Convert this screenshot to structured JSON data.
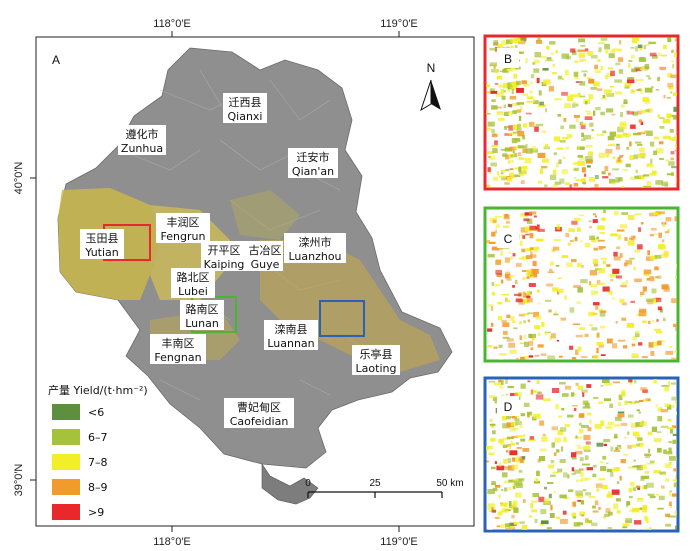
{
  "main_map": {
    "panel_label": "A",
    "top_ticks": [
      "118°0′E",
      "119°0′E"
    ],
    "bottom_ticks": [
      "118°0′E",
      "119°0′E"
    ],
    "left_ticks": [
      "40°0′N",
      "39°0′N"
    ],
    "north_label": "N",
    "places": [
      {
        "zh": "迁西县",
        "en": "Qianxi"
      },
      {
        "zh": "遵化市",
        "en": "Zunhua"
      },
      {
        "zh": "迁安市",
        "en": "Qian'an"
      },
      {
        "zh": "丰润区",
        "en": "Fengrun"
      },
      {
        "zh": "玉田县",
        "en": "Yutian"
      },
      {
        "zh": "开平区",
        "en": "Kaiping"
      },
      {
        "zh": "古冶区",
        "en": "Guye"
      },
      {
        "zh": "滦州市",
        "en": "Luanzhou"
      },
      {
        "zh": "路北区",
        "en": "Lubei"
      },
      {
        "zh": "路南区",
        "en": "Lunan"
      },
      {
        "zh": "滦南县",
        "en": "Luannan"
      },
      {
        "zh": "丰南区",
        "en": "Fengnan"
      },
      {
        "zh": "乐亭县",
        "en": "Laoting"
      },
      {
        "zh": "曹妃甸区",
        "en": "Caofeidian"
      }
    ],
    "legend": {
      "title": "产量 Yield/(t·hm⁻²)",
      "items": [
        {
          "label": "<6",
          "color": "#5d8f3e"
        },
        {
          "label": "6–7",
          "color": "#a6c23a"
        },
        {
          "label": "7–8",
          "color": "#f3ee2a"
        },
        {
          "label": "8–9",
          "color": "#f39a2c"
        },
        {
          "label": ">9",
          "color": "#e8282a"
        }
      ]
    },
    "scale_bar": {
      "ticks": [
        "0",
        "25",
        "50 km"
      ]
    }
  },
  "insets": [
    {
      "label": "B",
      "frame_color": "#e8282a"
    },
    {
      "label": "C",
      "frame_color": "#4ab52f"
    },
    {
      "label": "D",
      "frame_color": "#2a63b6"
    }
  ]
}
